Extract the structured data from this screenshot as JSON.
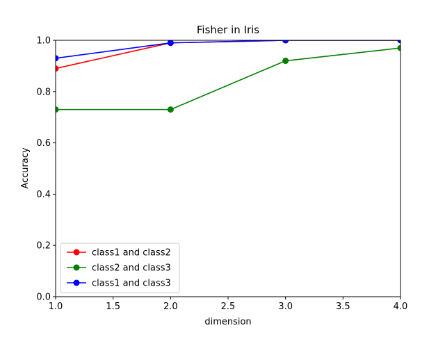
{
  "chart_data": {
    "type": "line",
    "title": "Fisher in Iris",
    "xlabel": "dimension",
    "ylabel": "Accuracy",
    "xlim": [
      1.0,
      4.0
    ],
    "ylim": [
      0.0,
      1.0
    ],
    "x_ticks": [
      "1.0",
      "1.5",
      "2.0",
      "2.5",
      "3.0",
      "3.5",
      "4.0"
    ],
    "y_ticks": [
      "0.0",
      "0.2",
      "0.4",
      "0.6",
      "0.8",
      "1.0"
    ],
    "grid": false,
    "legend_position": "lower-left",
    "x": [
      1,
      2,
      3,
      4
    ],
    "series": [
      {
        "name": "class1 and class2",
        "color": "#ff0000",
        "values": [
          0.89,
          0.99,
          1.0,
          1.0
        ]
      },
      {
        "name": "class2 and class3",
        "color": "#008000",
        "values": [
          0.73,
          0.73,
          0.92,
          0.97
        ]
      },
      {
        "name": "class1 and class3",
        "color": "#0000ff",
        "values": [
          0.93,
          0.99,
          1.0,
          1.0
        ]
      }
    ]
  }
}
